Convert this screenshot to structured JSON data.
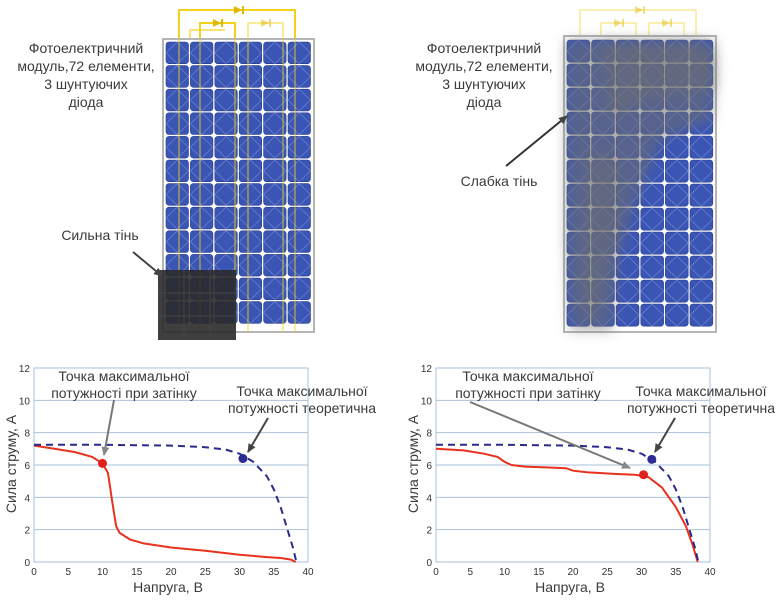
{
  "left": {
    "module_label": [
      "Фотоелектричний",
      "модуль,72 елементи,",
      "3 шунтуючих",
      "діода"
    ],
    "shade_label": "Сильна тінь",
    "chart_annotations": {
      "mpp_shaded": [
        "Точка максимальної",
        "потужності при затінку"
      ],
      "mpp_theoretical": [
        "Точка максимальної",
        "потужності теоретична"
      ]
    }
  },
  "right": {
    "module_label": [
      "Фотоелектричний",
      "модуль,72 елементи,",
      "3 шунтуючих",
      "діода"
    ],
    "shade_label": "Слабка тінь",
    "chart_annotations": {
      "mpp_shaded": [
        "Точка максимальної",
        "потужності при затінку"
      ],
      "mpp_theoretical": [
        "Точка максимальної",
        "потужності теоретична"
      ]
    }
  },
  "colors": {
    "cell": "#3a55b4",
    "cell_dark": "#24398a",
    "frame": "#b5b5b5",
    "bypass_wire": "#f2d21a",
    "shaded_curve": "#e8321e",
    "theoretical_curve": "#2a2a8a",
    "shaded_point": "#e0201a",
    "theoretical_point": "#2c2c94",
    "grid": "#a9c1dc"
  },
  "chart_data": [
    {
      "type": "line",
      "xlabel": "Напруга, В",
      "ylabel": "Сила струму, А",
      "xlim": [
        0,
        40
      ],
      "ylim": [
        0,
        12
      ],
      "xticks": [
        0,
        5,
        10,
        15,
        20,
        25,
        30,
        35,
        40
      ],
      "yticks": [
        0,
        2,
        4,
        6,
        8,
        10,
        12
      ],
      "grid": true,
      "series": [
        {
          "style": "solid",
          "color": "#e8321e",
          "x": [
            0,
            3,
            6,
            8.5,
            10,
            10.8,
            11.5,
            12,
            12.5,
            14,
            16,
            20,
            25,
            30,
            34,
            36,
            37.5,
            38.2
          ],
          "y": [
            7.2,
            7.0,
            6.8,
            6.5,
            6.1,
            5.5,
            3.5,
            2.2,
            1.8,
            1.4,
            1.15,
            0.9,
            0.7,
            0.45,
            0.3,
            0.25,
            0.15,
            0
          ]
        },
        {
          "style": "dashed",
          "color": "#2a2a8a",
          "x": [
            0,
            10,
            20,
            25,
            28,
            30,
            32,
            34,
            35,
            36,
            37,
            37.8,
            38.3
          ],
          "y": [
            7.25,
            7.25,
            7.2,
            7.1,
            6.95,
            6.7,
            6.2,
            5.3,
            4.5,
            3.4,
            2.0,
            0.9,
            0
          ]
        }
      ],
      "points": [
        {
          "x": 10,
          "y": 6.1,
          "role": "shaded",
          "color": "#e0201a"
        },
        {
          "x": 30.5,
          "y": 6.4,
          "role": "theoretical",
          "color": "#2c2c94"
        }
      ]
    },
    {
      "type": "line",
      "xlabel": "Напруга, В",
      "ylabel": "Сила струму, А",
      "xlim": [
        0,
        40
      ],
      "ylim": [
        0,
        12
      ],
      "xticks": [
        0,
        5,
        10,
        15,
        20,
        25,
        30,
        35,
        40
      ],
      "yticks": [
        0,
        2,
        4,
        6,
        8,
        10,
        12
      ],
      "grid": true,
      "series": [
        {
          "style": "solid",
          "color": "#e8321e",
          "x": [
            0,
            4,
            7,
            9,
            10,
            11,
            13,
            16,
            19,
            20,
            22,
            26,
            29,
            31,
            33,
            35,
            36.5,
            37.5,
            38.2
          ],
          "y": [
            7.0,
            6.9,
            6.7,
            6.5,
            6.2,
            6.0,
            5.9,
            5.85,
            5.8,
            5.65,
            5.55,
            5.45,
            5.4,
            5.25,
            4.6,
            3.4,
            2.2,
            1.0,
            0
          ]
        },
        {
          "style": "dashed",
          "color": "#2a2a8a",
          "x": [
            0,
            10,
            20,
            25,
            28,
            30,
            32,
            34,
            35,
            36,
            37,
            37.8,
            38.3
          ],
          "y": [
            7.25,
            7.25,
            7.2,
            7.1,
            6.95,
            6.7,
            6.2,
            5.3,
            4.5,
            3.4,
            2.0,
            0.9,
            0
          ]
        }
      ],
      "points": [
        {
          "x": 30.3,
          "y": 5.4,
          "role": "shaded",
          "color": "#e0201a"
        },
        {
          "x": 31.5,
          "y": 6.35,
          "role": "theoretical",
          "color": "#2c2c94"
        }
      ]
    }
  ]
}
